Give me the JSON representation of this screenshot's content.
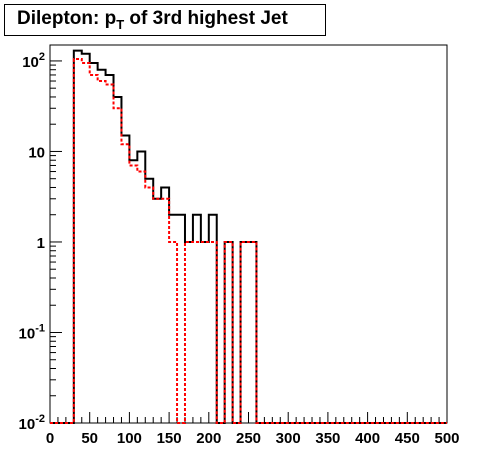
{
  "chart_data": {
    "type": "step-histogram",
    "title": {
      "prefix": "Dilepton: p",
      "sub": "T",
      "suffix": " of 3rd highest Jet"
    },
    "xlabel": "",
    "ylabel": "",
    "x_range": [
      0,
      500
    ],
    "y_range": [
      0.01,
      150
    ],
    "y_scale": "log",
    "bin_width": 10,
    "x_tick_labels": [
      "0",
      "50",
      "100",
      "150",
      "200",
      "250",
      "300",
      "350",
      "400",
      "450",
      "500"
    ],
    "y_tick_labels": [
      {
        "base": "10",
        "exp": "-2",
        "value": 0.01
      },
      {
        "base": "10",
        "exp": "-1",
        "value": 0.1
      },
      {
        "base": "1",
        "exp": "",
        "value": 1
      },
      {
        "base": "10",
        "exp": "",
        "value": 10
      },
      {
        "base": "10",
        "exp": "2",
        "value": 100
      }
    ],
    "series": [
      {
        "color": "#000000",
        "dashed": false,
        "bin_edges": [
          0,
          30,
          40,
          50,
          60,
          70,
          80,
          90,
          100,
          110,
          120,
          130,
          140,
          150,
          160,
          170,
          180,
          190,
          200,
          210,
          220,
          230,
          240,
          250,
          260,
          500
        ],
        "values": [
          0,
          130,
          120,
          95,
          80,
          70,
          40,
          15,
          8,
          10,
          5,
          3,
          4,
          2,
          2,
          1,
          2,
          1,
          2,
          0,
          1,
          0,
          1,
          1,
          0
        ]
      },
      {
        "color": "#ff0000",
        "dashed": true,
        "bin_edges": [
          0,
          30,
          40,
          50,
          60,
          70,
          80,
          90,
          100,
          110,
          120,
          130,
          140,
          150,
          160,
          170,
          180,
          190,
          200,
          210,
          220,
          230,
          240,
          250,
          260,
          500
        ],
        "values": [
          0,
          105,
          95,
          70,
          60,
          55,
          30,
          12,
          7,
          6,
          4,
          3,
          3,
          1,
          0,
          1,
          1,
          1,
          1,
          0,
          1,
          0,
          1,
          1,
          0
        ]
      }
    ]
  }
}
